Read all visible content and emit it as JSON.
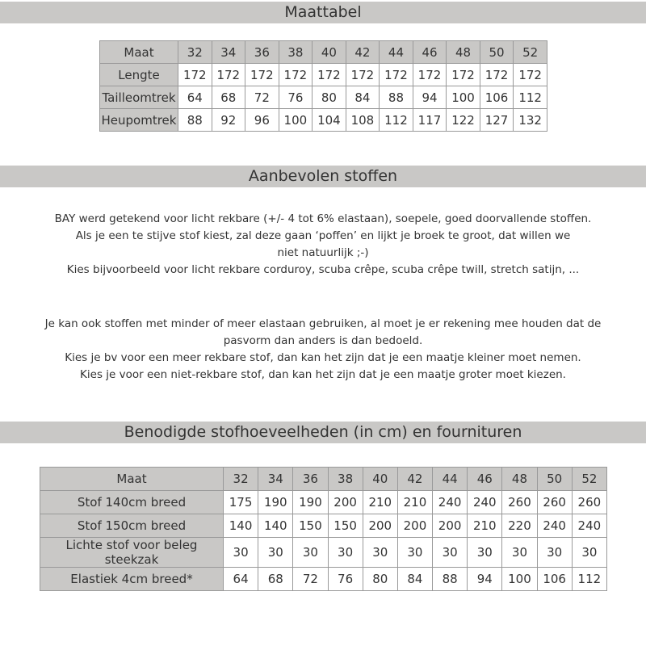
{
  "sections": [
    {
      "title": "Maattabel"
    },
    {
      "title": "Aanbevolen stoffen",
      "paragraphs": [
        [
          "BAY werd getekend voor licht rekbare (+/- 4 tot 6% elastaan), soepele, goed doorvallende stoffen.",
          "Als je een te stijve stof kiest, zal deze gaan ‘poffen’ en lijkt je broek te groot, dat willen we",
          "niet natuurlijk ;-)",
          "Kies bijvoorbeeld voor licht rekbare corduroy, scuba crêpe, scuba crêpe twill, stretch satijn, ..."
        ],
        [
          "Je kan ook stoffen met minder of meer elastaan gebruiken, al moet je er rekening mee houden dat de",
          "pasvorm dan anders is dan bedoeld.",
          "Kies je bv voor een meer rekbare stof, dan kan het zijn dat je een maatje kleiner moet nemen.",
          "Kies je voor een niet-rekbare stof, dan kan het zijn dat je een maatje groter moet kiezen."
        ]
      ]
    },
    {
      "title": "Benodigde stofhoeveelheden (in cm) en fournituren"
    }
  ],
  "size_table": {
    "rows": [
      [
        "Maat",
        32,
        34,
        36,
        38,
        40,
        42,
        44,
        46,
        48,
        50,
        52
      ],
      [
        "Lengte",
        172,
        172,
        172,
        172,
        172,
        172,
        172,
        172,
        172,
        172,
        172
      ],
      [
        "Tailleomtrek",
        64,
        68,
        72,
        76,
        80,
        84,
        88,
        94,
        100,
        106,
        112
      ],
      [
        "Heupomtrek",
        88,
        92,
        96,
        100,
        104,
        108,
        112,
        117,
        122,
        127,
        132
      ]
    ]
  },
  "fabric_table": {
    "rows": [
      [
        "Maat",
        32,
        34,
        36,
        38,
        40,
        42,
        44,
        46,
        48,
        50,
        52
      ],
      [
        "Stof 140cm breed",
        175,
        190,
        190,
        200,
        210,
        210,
        240,
        240,
        260,
        260,
        260
      ],
      [
        "Stof 150cm breed",
        140,
        140,
        150,
        150,
        200,
        200,
        200,
        210,
        220,
        240,
        240
      ],
      [
        "Lichte stof voor beleg steekzak",
        30,
        30,
        30,
        30,
        30,
        30,
        30,
        30,
        30,
        30,
        30
      ],
      [
        "Elastiek 4cm breed*",
        64,
        68,
        72,
        76,
        80,
        84,
        88,
        94,
        100,
        106,
        112
      ]
    ]
  }
}
